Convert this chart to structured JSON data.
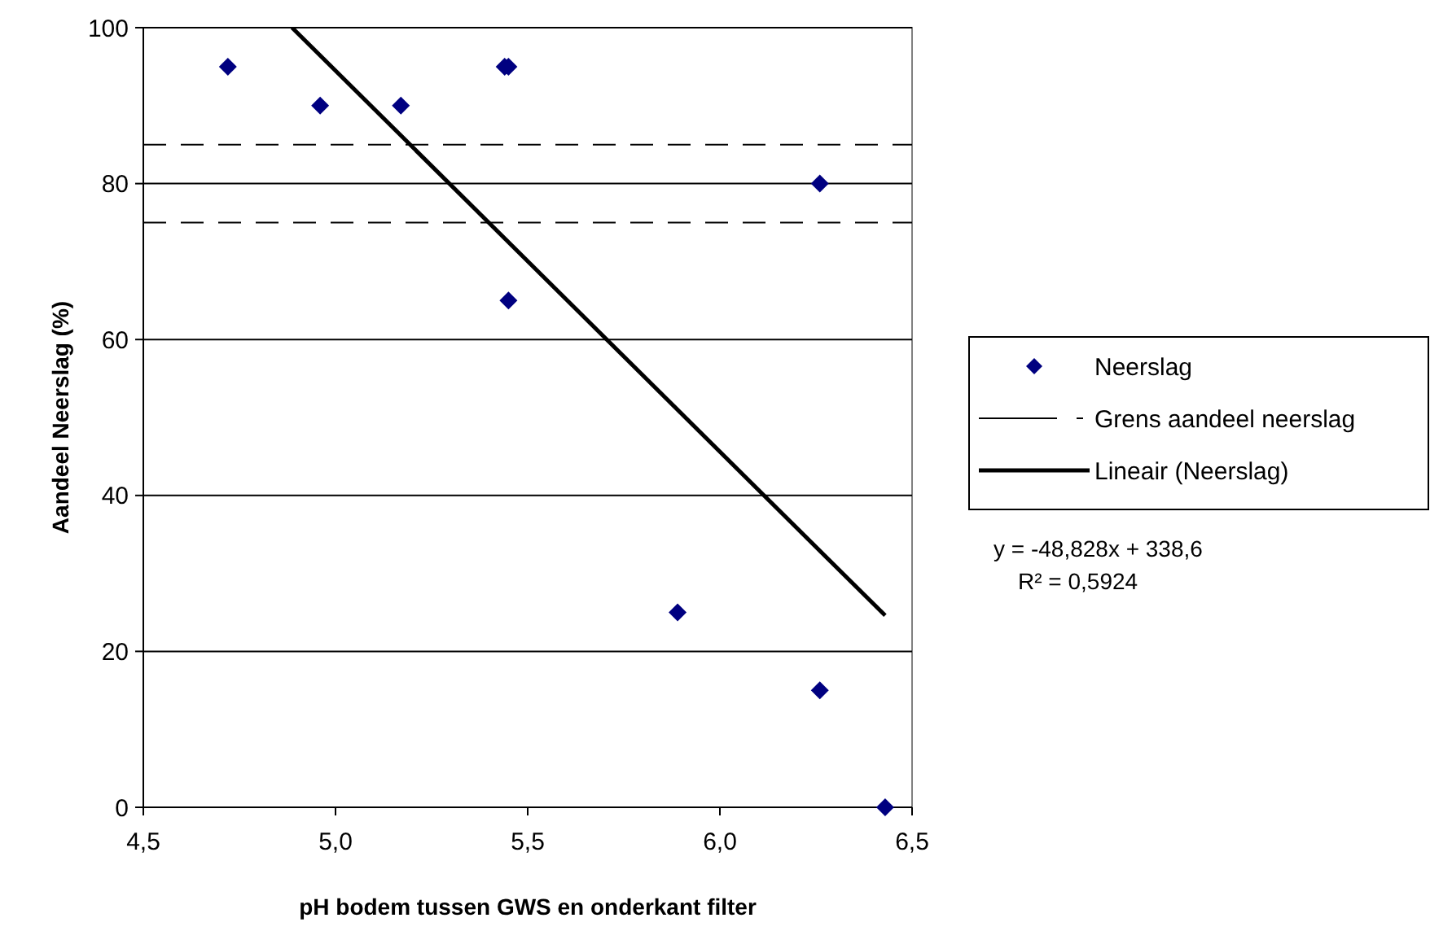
{
  "chart_data": {
    "type": "scatter",
    "xlabel": "pH bodem tussen GWS en onderkant filter",
    "ylabel": "Aandeel Neerslag (%)",
    "xlim": [
      4.5,
      6.5
    ],
    "xticks": [
      {
        "value": 4.5,
        "label": "4,5"
      },
      {
        "value": 5.0,
        "label": "5,0"
      },
      {
        "value": 5.5,
        "label": "5,5"
      },
      {
        "value": 6.0,
        "label": "6,0"
      },
      {
        "value": 6.5,
        "label": "6,5"
      }
    ],
    "ylim": [
      0,
      100
    ],
    "yticks": [
      0,
      20,
      40,
      60,
      80,
      100
    ],
    "grid": "y",
    "legend": "right",
    "series": [
      {
        "name": "Neerslag",
        "marker": "diamond",
        "color": "#000080",
        "x": [
          4.72,
          4.96,
          5.17,
          5.44,
          5.45,
          5.45,
          6.26,
          5.89,
          6.26,
          6.43
        ],
        "values": [
          95,
          90,
          90,
          95,
          95,
          65,
          80,
          25,
          15,
          0
        ]
      },
      {
        "name": "Grens aandeel neerslag",
        "type": "line",
        "marker": "none",
        "line_style": "dashed",
        "color": "#000000",
        "x": [
          4.5,
          6.5
        ],
        "values": [
          85,
          85
        ]
      },
      {
        "type": "line",
        "marker": "none",
        "line_style": "dashed",
        "color": "#000000",
        "x": [
          4.5,
          6.5
        ],
        "values": [
          75,
          75
        ]
      },
      {
        "name": "Lineair (Neerslag)",
        "type": "line",
        "marker": "none",
        "line_style": "solid",
        "color": "#000000",
        "x": [
          4.887,
          6.43
        ],
        "values": [
          100,
          24.6
        ]
      }
    ],
    "annotations": [
      "y = -48,828x + 338,6",
      "R² = 0,5924"
    ]
  }
}
